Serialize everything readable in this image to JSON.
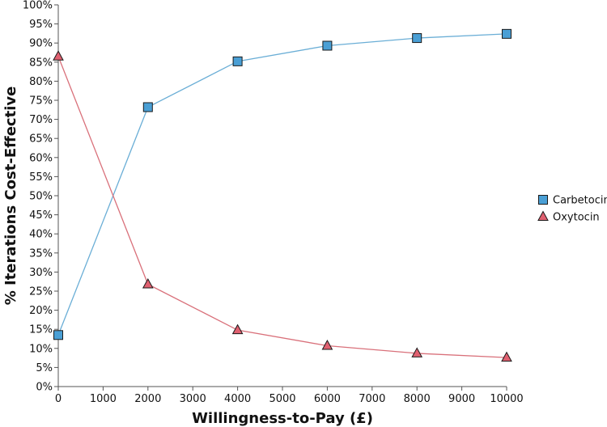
{
  "chart_data": {
    "type": "line",
    "title": "",
    "xlabel": "Willingness-to-Pay (£)",
    "ylabel": "% Iterations Cost-Effective",
    "xlim": [
      0,
      10000
    ],
    "ylim": [
      0,
      100
    ],
    "x_ticks": [
      0,
      1000,
      2000,
      3000,
      4000,
      5000,
      6000,
      7000,
      8000,
      9000,
      10000
    ],
    "y_ticks": [
      0,
      5,
      10,
      15,
      20,
      25,
      30,
      35,
      40,
      45,
      50,
      55,
      60,
      65,
      70,
      75,
      80,
      85,
      90,
      95,
      100
    ],
    "y_tick_suffix": "%",
    "grid": false,
    "legend_position": "right",
    "series": [
      {
        "name": "Carbetocin",
        "marker": "square",
        "line_color": "#6aaed6",
        "marker_color": "#4a9fd5",
        "points": [
          {
            "x": 0,
            "y": 13.5
          },
          {
            "x": 2000,
            "y": 73.2
          },
          {
            "x": 4000,
            "y": 85.2
          },
          {
            "x": 6000,
            "y": 89.3
          },
          {
            "x": 8000,
            "y": 91.3
          },
          {
            "x": 10000,
            "y": 92.4
          }
        ]
      },
      {
        "name": "Oxytocin",
        "marker": "triangle",
        "line_color": "#d9707a",
        "marker_color": "#e06070",
        "points": [
          {
            "x": 0,
            "y": 86.5
          },
          {
            "x": 2000,
            "y": 26.8
          },
          {
            "x": 4000,
            "y": 14.8
          },
          {
            "x": 6000,
            "y": 10.7
          },
          {
            "x": 8000,
            "y": 8.7
          },
          {
            "x": 10000,
            "y": 7.6
          }
        ]
      }
    ]
  }
}
